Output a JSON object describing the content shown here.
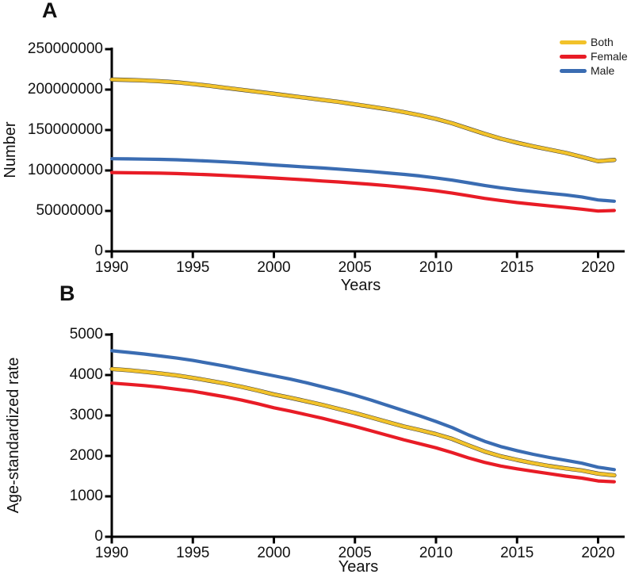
{
  "page": {
    "background": "#ffffff"
  },
  "legend": {
    "position": "top-right",
    "items": [
      {
        "label": "Both",
        "color": "#F2C22A"
      },
      {
        "label": "Female",
        "color": "#E81C26"
      },
      {
        "label": "Male",
        "color": "#3A6CB2"
      }
    ]
  },
  "chart_data": [
    {
      "type": "line",
      "panel_label": "A",
      "ylabel": "Number",
      "xlabel": "Years",
      "grid": false,
      "legend_position": "top-right",
      "xlim": [
        1990,
        2022
      ],
      "ylim": [
        0,
        250000000
      ],
      "xticks": [
        1990,
        1995,
        2000,
        2005,
        2010,
        2015,
        2020
      ],
      "ytick_values": [
        0,
        50000000,
        100000000,
        150000000,
        200000000,
        250000000
      ],
      "ytick_labels": [
        "0",
        "50000000",
        "100000000",
        "150000000",
        "200000000",
        "250000000"
      ],
      "x": [
        1990,
        1991,
        1992,
        1993,
        1994,
        1995,
        1996,
        1997,
        1998,
        1999,
        2000,
        2001,
        2002,
        2003,
        2004,
        2005,
        2006,
        2007,
        2008,
        2009,
        2010,
        2011,
        2012,
        2013,
        2014,
        2015,
        2016,
        2017,
        2018,
        2019,
        2020,
        2021
      ],
      "series": [
        {
          "name": "Both",
          "color": "#F2C22A",
          "values": [
            212500000,
            212000000,
            211300000,
            210300000,
            209000000,
            207000000,
            204800000,
            202300000,
            199800000,
            197300000,
            194800000,
            192300000,
            189800000,
            187300000,
            184800000,
            181800000,
            178800000,
            175800000,
            172300000,
            168300000,
            163800000,
            158300000,
            151800000,
            145300000,
            139300000,
            134300000,
            129800000,
            125800000,
            121800000,
            116800000,
            111500000,
            113000000
          ]
        },
        {
          "name": "Female",
          "color": "#E81C26",
          "values": [
            97500000,
            97200000,
            97000000,
            96700000,
            96200000,
            95500000,
            94700000,
            93800000,
            92800000,
            91800000,
            90700000,
            89500000,
            88300000,
            87000000,
            85800000,
            84300000,
            82800000,
            81200000,
            79300000,
            77200000,
            74800000,
            72000000,
            68800000,
            65500000,
            62800000,
            60300000,
            58200000,
            56200000,
            54200000,
            52200000,
            49800000,
            50500000
          ]
        },
        {
          "name": "Male",
          "color": "#3A6CB2",
          "values": [
            114500000,
            114300000,
            114000000,
            113700000,
            113200000,
            112500000,
            111600000,
            110600000,
            109500000,
            108200000,
            106800000,
            105500000,
            104200000,
            103000000,
            101700000,
            100200000,
            98700000,
            97000000,
            95200000,
            93200000,
            90800000,
            88000000,
            84800000,
            81500000,
            78500000,
            76000000,
            73800000,
            71800000,
            69800000,
            67300000,
            63500000,
            62000000
          ]
        }
      ]
    },
    {
      "type": "line",
      "panel_label": "B",
      "ylabel": "Age-standardized rate",
      "xlabel": "Years",
      "grid": false,
      "legend_position": "none",
      "xlim": [
        1990,
        2022
      ],
      "ylim": [
        0,
        5000
      ],
      "xticks": [
        1990,
        1995,
        2000,
        2005,
        2010,
        2015,
        2020
      ],
      "ytick_values": [
        0,
        1000,
        2000,
        3000,
        4000,
        5000
      ],
      "ytick_labels": [
        "0",
        "1000",
        "2000",
        "3000",
        "4000",
        "5000"
      ],
      "x": [
        1990,
        1991,
        1992,
        1993,
        1994,
        1995,
        1996,
        1997,
        1998,
        1999,
        2000,
        2001,
        2002,
        2003,
        2004,
        2005,
        2006,
        2007,
        2008,
        2009,
        2010,
        2011,
        2012,
        2013,
        2014,
        2015,
        2016,
        2017,
        2018,
        2019,
        2020,
        2021
      ],
      "series": [
        {
          "name": "Both",
          "color": "#F2C22A",
          "values": [
            4150,
            4120,
            4080,
            4040,
            3990,
            3930,
            3860,
            3790,
            3710,
            3620,
            3520,
            3440,
            3350,
            3260,
            3160,
            3060,
            2950,
            2840,
            2730,
            2640,
            2540,
            2420,
            2260,
            2110,
            1990,
            1900,
            1820,
            1750,
            1690,
            1640,
            1560,
            1520
          ]
        },
        {
          "name": "Female",
          "color": "#E81C26",
          "values": [
            3800,
            3770,
            3740,
            3700,
            3650,
            3600,
            3530,
            3460,
            3380,
            3290,
            3190,
            3110,
            3020,
            2930,
            2830,
            2730,
            2620,
            2510,
            2400,
            2300,
            2200,
            2080,
            1950,
            1840,
            1750,
            1680,
            1620,
            1560,
            1500,
            1450,
            1380,
            1360
          ]
        },
        {
          "name": "Male",
          "color": "#3A6CB2",
          "values": [
            4600,
            4560,
            4520,
            4470,
            4420,
            4360,
            4290,
            4220,
            4140,
            4060,
            3980,
            3900,
            3810,
            3710,
            3610,
            3500,
            3380,
            3250,
            3120,
            2990,
            2850,
            2700,
            2520,
            2360,
            2230,
            2130,
            2040,
            1960,
            1890,
            1820,
            1720,
            1660
          ]
        }
      ]
    }
  ]
}
